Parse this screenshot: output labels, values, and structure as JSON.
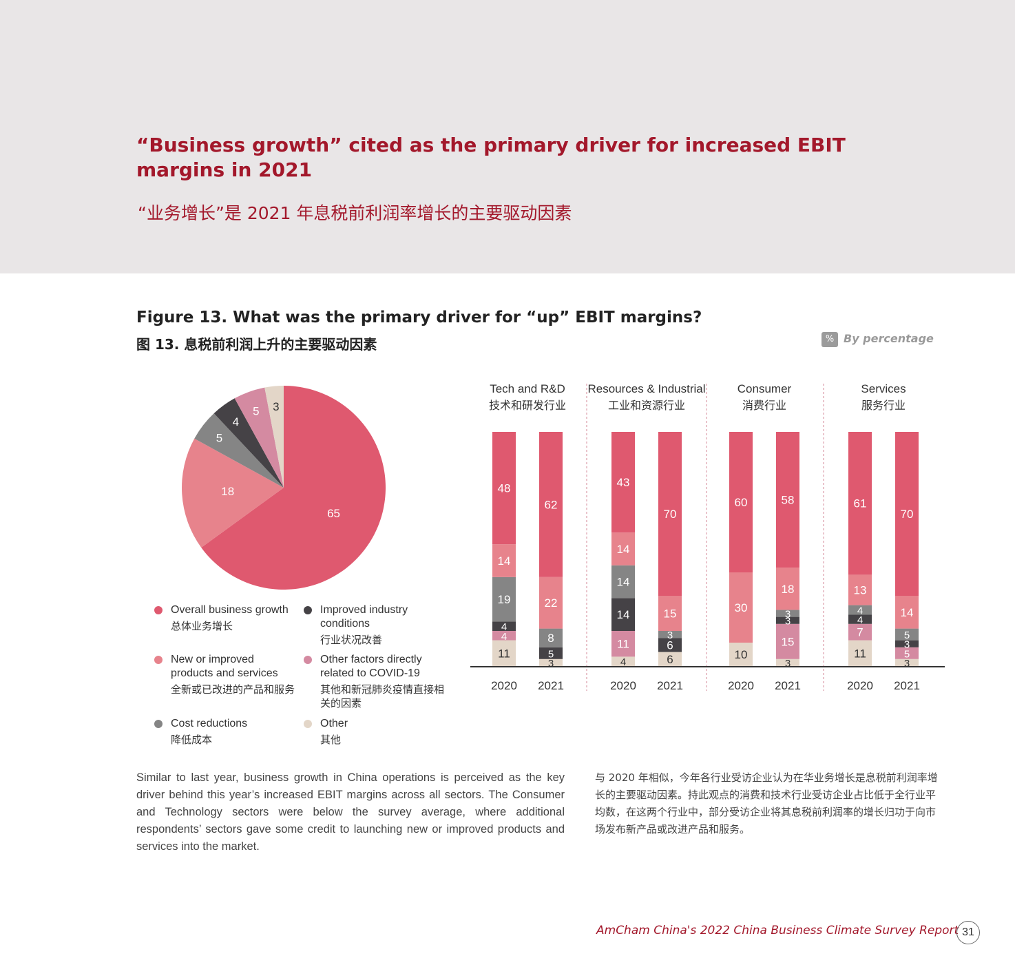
{
  "header": {
    "title": "“Business growth” cited as the primary driver for increased EBIT margins in 2021",
    "title_cn": "“业务增长”是 2021 年息税前利润率增长的主要驱动因素"
  },
  "figure": {
    "title": "Figure 13. What was the primary driver for “up” EBIT margins?",
    "title_cn": "图 13. 息税前利润上升的主要驱动因素",
    "unit_badge": "%",
    "unit_note": "By percentage"
  },
  "colors": {
    "overall": "#df596f",
    "new_products": "#e7838c",
    "cost": "#858585",
    "industry": "#454246",
    "covid": "#d48aa1",
    "other": "#e3d6c8"
  },
  "legend": [
    {
      "key": "overall",
      "en": "Overall business growth",
      "cn": "总体业务增长"
    },
    {
      "key": "industry",
      "en": "Improved industry conditions",
      "cn": "行业状况改善"
    },
    {
      "key": "new_products",
      "en": "New or improved products and services",
      "cn": "全新或已改进的产品和服务"
    },
    {
      "key": "covid",
      "en": "Other factors directly related to COVID-19",
      "cn": "其他和新冠肺炎疫情直接相关的因素"
    },
    {
      "key": "cost",
      "en": "Cost reductions",
      "cn": "降低成本"
    },
    {
      "key": "other",
      "en": "Other",
      "cn": "其他"
    }
  ],
  "chart_data": [
    {
      "type": "pie",
      "categories": [
        "Overall business growth",
        "New or improved products and services",
        "Cost reductions",
        "Improved industry conditions",
        "Other factors directly related to COVID-19",
        "Other"
      ],
      "values": [
        65,
        18,
        5,
        4,
        5,
        3
      ]
    },
    {
      "type": "bar",
      "stacked": true,
      "stack_order_bottom_to_top": [
        "Other",
        "Other factors directly related to COVID-19",
        "Improved industry conditions",
        "Cost reductions",
        "New or improved products and services",
        "Overall business growth"
      ],
      "groups": [
        {
          "name": "Tech and R&D",
          "name_cn": "技术和研发行业",
          "bars": [
            {
              "year": "2020",
              "values": [
                11,
                4,
                4,
                19,
                14,
                48
              ]
            },
            {
              "year": "2021",
              "values": [
                3,
                0,
                5,
                8,
                22,
                62
              ]
            }
          ]
        },
        {
          "name": "Resources & Industrial",
          "name_cn": "工业和资源行业",
          "bars": [
            {
              "year": "2020",
              "values": [
                4,
                11,
                14,
                14,
                14,
                43
              ]
            },
            {
              "year": "2021",
              "values": [
                6,
                0,
                6,
                3,
                15,
                70
              ]
            }
          ]
        },
        {
          "name": "Consumer",
          "name_cn": "消费行业",
          "bars": [
            {
              "year": "2020",
              "values": [
                10,
                0,
                0,
                0,
                30,
                60
              ]
            },
            {
              "year": "2021",
              "values": [
                3,
                15,
                3,
                3,
                18,
                58
              ]
            }
          ]
        },
        {
          "name": "Services",
          "name_cn": "服务行业",
          "bars": [
            {
              "year": "2020",
              "values": [
                11,
                7,
                4,
                4,
                13,
                61
              ]
            },
            {
              "year": "2021",
              "values": [
                3,
                5,
                3,
                5,
                14,
                70
              ]
            }
          ]
        }
      ],
      "ylim": [
        0,
        100
      ]
    }
  ],
  "body": {
    "en": "Similar to last year, business growth in China operations is perceived as the key driver behind this year’s increased EBIT margins across all sectors. The Consumer and Technology sectors were below the survey average, where additional respondents’ sectors gave some credit to launching new or improved products and services into the market.",
    "cn": "与 2020 年相似，今年各行业受访企业认为在华业务增长是息税前利润率增长的主要驱动因素。持此观点的消费和技术行业受访企业占比低于全行业平均数，在这两个行业中，部分受访企业将其息税前利润率的增长归功于向市场发布新产品或改进产品和服务。"
  },
  "footer": {
    "text": "AmCham China's 2022 China Business Climate Survey Report",
    "page": "31"
  }
}
